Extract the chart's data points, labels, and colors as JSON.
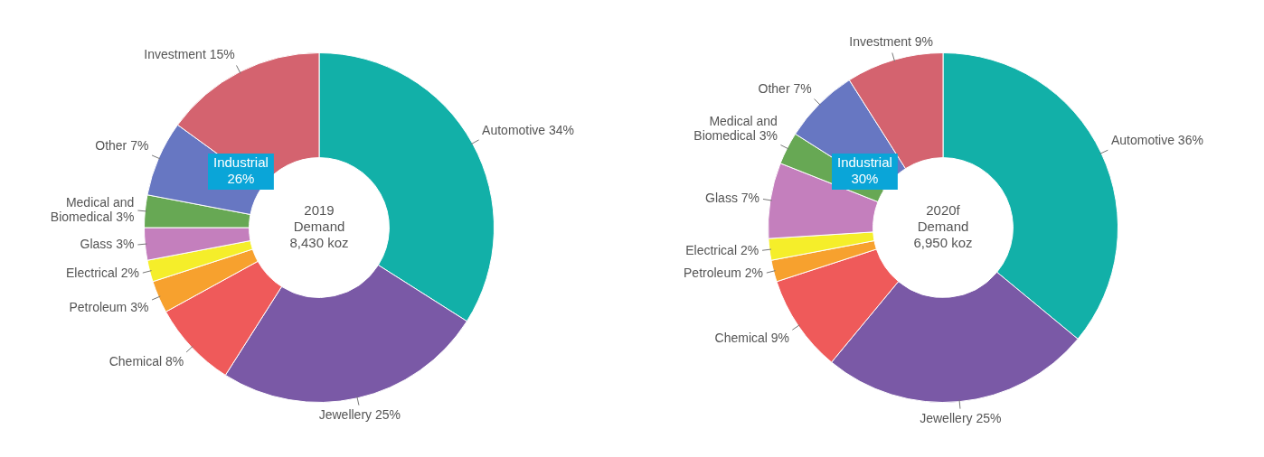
{
  "chart_data": [
    {
      "type": "donut",
      "categories": [
        "Automotive",
        "Jewellery",
        "Chemical",
        "Petroleum",
        "Electrical",
        "Glass",
        "Medical and Biomedical",
        "Other",
        "Investment"
      ],
      "values": [
        34,
        25,
        8,
        3,
        2,
        3,
        3,
        7,
        15
      ],
      "colors": [
        "#12b0a8",
        "#7a59a6",
        "#ef5a5a",
        "#f7a12e",
        "#f5ee2a",
        "#c47fbd",
        "#67a854",
        "#6777c2",
        "#d4636f"
      ],
      "value_labels": [
        "34%",
        "25%",
        "8%",
        "3%",
        "2%",
        "3%",
        "3%",
        "7%",
        "15%"
      ],
      "annotations": [
        "2019\nDemand\n8,430 koz",
        "Industrial\n26%"
      ]
    },
    {
      "type": "donut",
      "categories": [
        "Automotive",
        "Jewellery",
        "Chemical",
        "Petroleum",
        "Electrical",
        "Glass",
        "Medical and Biomedical",
        "Other",
        "Investment"
      ],
      "values": [
        36,
        25,
        9,
        2,
        2,
        7,
        3,
        7,
        9
      ],
      "colors": [
        "#12b0a8",
        "#7a59a6",
        "#ef5a5a",
        "#f7a12e",
        "#f5ee2a",
        "#c47fbd",
        "#67a854",
        "#6777c2",
        "#d4636f"
      ],
      "value_labels": [
        "36%",
        "25%",
        "9%",
        "2%",
        "2%",
        "7%",
        "3%",
        "7%",
        "9%"
      ],
      "annotations": [
        "2020f\nDemand\n6,950 koz",
        "Industrial\n30%"
      ]
    }
  ]
}
